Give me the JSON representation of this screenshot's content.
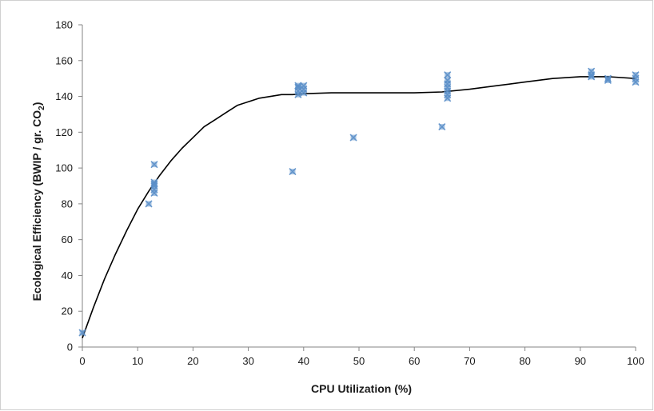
{
  "chart_data": {
    "type": "scatter",
    "title": "",
    "xlabel": "CPU Utilization (%)",
    "ylabel": {
      "main": "Ecological Efficiency (BWIP / gr. CO",
      "subscript": "2",
      "end": ")"
    },
    "xlim": [
      0,
      100
    ],
    "ylim": [
      0,
      180
    ],
    "x_ticks": [
      0,
      10,
      20,
      30,
      40,
      50,
      60,
      70,
      80,
      90,
      100
    ],
    "y_ticks": [
      0,
      20,
      40,
      60,
      80,
      100,
      120,
      140,
      160,
      180
    ],
    "grid": false,
    "legend": "none",
    "marker_color": "#5b8fc9",
    "line_color": "#000000",
    "series": [
      {
        "kind": "points",
        "points": [
          [
            0,
            8
          ],
          [
            12,
            80
          ],
          [
            13,
            86
          ],
          [
            13,
            88
          ],
          [
            13,
            90
          ],
          [
            13,
            91
          ],
          [
            13,
            92
          ],
          [
            13,
            102
          ],
          [
            38,
            98
          ],
          [
            39,
            141
          ],
          [
            39,
            143
          ],
          [
            39,
            145
          ],
          [
            39,
            146
          ],
          [
            40,
            142
          ],
          [
            40,
            144
          ],
          [
            40,
            146
          ],
          [
            49,
            117
          ],
          [
            65,
            123
          ],
          [
            66,
            139
          ],
          [
            66,
            141
          ],
          [
            66,
            143
          ],
          [
            66,
            145
          ],
          [
            66,
            147
          ],
          [
            66,
            149
          ],
          [
            66,
            152
          ],
          [
            92,
            151
          ],
          [
            92,
            152
          ],
          [
            92,
            154
          ],
          [
            95,
            149
          ],
          [
            95,
            150
          ],
          [
            100,
            148
          ],
          [
            100,
            150
          ],
          [
            100,
            152
          ]
        ]
      },
      {
        "kind": "trend-line",
        "points": [
          [
            0,
            5
          ],
          [
            2,
            22
          ],
          [
            4,
            38
          ],
          [
            6,
            52
          ],
          [
            8,
            65
          ],
          [
            10,
            77
          ],
          [
            12,
            87
          ],
          [
            14,
            96
          ],
          [
            16,
            104
          ],
          [
            18,
            111
          ],
          [
            20,
            117
          ],
          [
            22,
            123
          ],
          [
            24,
            127
          ],
          [
            26,
            131
          ],
          [
            28,
            135
          ],
          [
            30,
            137
          ],
          [
            32,
            139
          ],
          [
            34,
            140
          ],
          [
            36,
            141
          ],
          [
            38,
            141
          ],
          [
            40,
            141.5
          ],
          [
            45,
            142
          ],
          [
            50,
            142
          ],
          [
            55,
            142
          ],
          [
            60,
            142
          ],
          [
            65,
            142.5
          ],
          [
            70,
            144
          ],
          [
            75,
            146
          ],
          [
            80,
            148
          ],
          [
            85,
            150
          ],
          [
            90,
            151
          ],
          [
            95,
            151
          ],
          [
            100,
            150
          ]
        ]
      }
    ]
  }
}
